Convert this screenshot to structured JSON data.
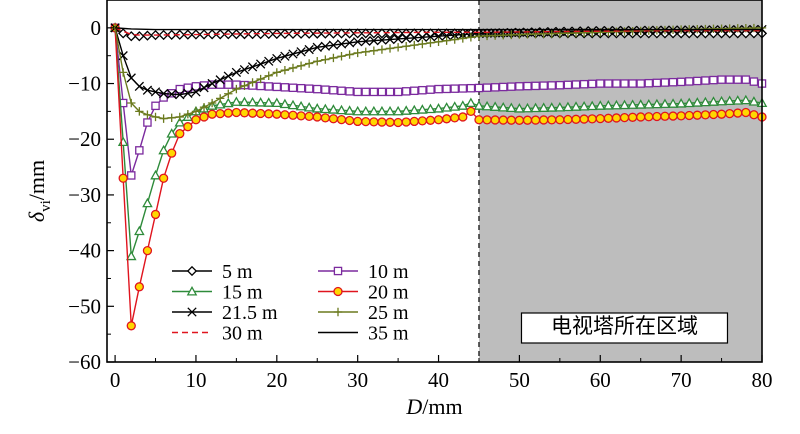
{
  "chart_data": {
    "type": "line",
    "xlabel": {
      "main": "D",
      "unit": "/mm"
    },
    "ylabel": {
      "main": "δ",
      "sub": "vi",
      "unit": "/mm"
    },
    "xlim": [
      -1,
      80
    ],
    "ylim": [
      -60,
      5
    ],
    "xticks": [
      0,
      10,
      20,
      30,
      40,
      50,
      60,
      70,
      80
    ],
    "yticks": [
      0,
      -10,
      -20,
      -30,
      -40,
      -50,
      -60
    ],
    "xtick_labels": [
      "0",
      "10",
      "20",
      "30",
      "40",
      "50",
      "60",
      "70",
      "80"
    ],
    "ytick_labels": [
      "0",
      "−10",
      "−20",
      "−30",
      "−40",
      "−50",
      "−60"
    ],
    "grid": false,
    "legend_placement": "bottom-left",
    "shaded_region": {
      "x_start": 45,
      "x_end": 80,
      "label": "电视塔所在区域",
      "color": "#bdbdbd"
    },
    "series": [
      {
        "name": "5 m",
        "color": "#000000",
        "marker": "diamond",
        "line": "solid",
        "points": [
          [
            0,
            0
          ],
          [
            1,
            -1
          ],
          [
            2,
            -1.5
          ],
          [
            3,
            -1.5
          ],
          [
            5,
            -1.3
          ],
          [
            10,
            -1.2
          ],
          [
            20,
            -1.1
          ],
          [
            30,
            -1
          ],
          [
            40,
            -1
          ],
          [
            45,
            -1
          ],
          [
            50,
            -1
          ],
          [
            60,
            -1
          ],
          [
            70,
            -1
          ],
          [
            80,
            -1
          ]
        ]
      },
      {
        "name": "10 m",
        "color": "#7b2a9e",
        "marker": "square",
        "line": "solid",
        "points": [
          [
            0,
            0
          ],
          [
            1,
            -13.5
          ],
          [
            2,
            -26.5
          ],
          [
            3,
            -22
          ],
          [
            4,
            -17
          ],
          [
            5,
            -14
          ],
          [
            6,
            -12.5
          ],
          [
            8,
            -11
          ],
          [
            10,
            -10.5
          ],
          [
            12,
            -10.2
          ],
          [
            15,
            -10.2
          ],
          [
            20,
            -10.6
          ],
          [
            25,
            -11
          ],
          [
            30,
            -11.5
          ],
          [
            35,
            -11.5
          ],
          [
            40,
            -11
          ],
          [
            45,
            -10.8
          ],
          [
            50,
            -10.5
          ],
          [
            55,
            -10.3
          ],
          [
            60,
            -10
          ],
          [
            65,
            -10
          ],
          [
            70,
            -9.7
          ],
          [
            75,
            -9.3
          ],
          [
            78,
            -9.3
          ],
          [
            80,
            -10
          ]
        ]
      },
      {
        "name": "15 m",
        "color": "#2e8b3a",
        "marker": "triangle",
        "line": "solid",
        "points": [
          [
            0,
            0
          ],
          [
            1,
            -20.5
          ],
          [
            2,
            -41
          ],
          [
            3,
            -36.5
          ],
          [
            4,
            -31.5
          ],
          [
            5,
            -26.5
          ],
          [
            6,
            -22
          ],
          [
            7,
            -19
          ],
          [
            8,
            -17
          ],
          [
            10,
            -15
          ],
          [
            12,
            -14
          ],
          [
            15,
            -13.3
          ],
          [
            20,
            -13.5
          ],
          [
            25,
            -14.5
          ],
          [
            30,
            -15
          ],
          [
            35,
            -15
          ],
          [
            40,
            -14.5
          ],
          [
            43,
            -14
          ],
          [
            44,
            -13.5
          ],
          [
            45,
            -14
          ],
          [
            50,
            -14.5
          ],
          [
            55,
            -14.3
          ],
          [
            60,
            -14
          ],
          [
            65,
            -13.8
          ],
          [
            70,
            -13.6
          ],
          [
            75,
            -13.2
          ],
          [
            78,
            -13
          ],
          [
            80,
            -13.5
          ]
        ]
      },
      {
        "name": "20 m",
        "color": "#e0141e",
        "marker": "circle",
        "line": "solid",
        "marker_fill": "#ffd700",
        "points": [
          [
            0,
            0
          ],
          [
            1,
            -27
          ],
          [
            2,
            -53.5
          ],
          [
            3,
            -46.5
          ],
          [
            4,
            -40
          ],
          [
            5,
            -33.5
          ],
          [
            6,
            -27
          ],
          [
            7,
            -22.5
          ],
          [
            8,
            -19
          ],
          [
            10,
            -16.5
          ],
          [
            12,
            -15.5
          ],
          [
            15,
            -15.2
          ],
          [
            20,
            -15.5
          ],
          [
            25,
            -16
          ],
          [
            30,
            -16.8
          ],
          [
            35,
            -17
          ],
          [
            40,
            -16.5
          ],
          [
            43,
            -16
          ],
          [
            44,
            -15
          ],
          [
            45,
            -16.5
          ],
          [
            50,
            -16.6
          ],
          [
            55,
            -16.5
          ],
          [
            60,
            -16.3
          ],
          [
            65,
            -16
          ],
          [
            70,
            -15.8
          ],
          [
            75,
            -15.5
          ],
          [
            78,
            -15.2
          ],
          [
            80,
            -16
          ]
        ]
      },
      {
        "name": "21.5 m",
        "color": "#000000",
        "marker": "x",
        "line": "solid",
        "points": [
          [
            0,
            0
          ],
          [
            1,
            -5
          ],
          [
            2,
            -9
          ],
          [
            3,
            -10.5
          ],
          [
            4,
            -11.2
          ],
          [
            5,
            -11.5
          ],
          [
            6,
            -11.8
          ],
          [
            8,
            -12
          ],
          [
            10,
            -11.5
          ],
          [
            12,
            -10
          ],
          [
            15,
            -8
          ],
          [
            20,
            -5.5
          ],
          [
            25,
            -3.5
          ],
          [
            30,
            -2.5
          ],
          [
            35,
            -2
          ],
          [
            40,
            -1.5
          ],
          [
            45,
            -1
          ],
          [
            50,
            -0.8
          ],
          [
            60,
            -0.5
          ],
          [
            70,
            -0.4
          ],
          [
            80,
            -0.3
          ]
        ]
      },
      {
        "name": "25 m",
        "color": "#6b7a1e",
        "marker": "plus",
        "line": "solid",
        "points": [
          [
            0,
            0
          ],
          [
            1,
            -8
          ],
          [
            2,
            -13.5
          ],
          [
            3,
            -15
          ],
          [
            4,
            -15.6
          ],
          [
            5,
            -16
          ],
          [
            6,
            -16.3
          ],
          [
            8,
            -16
          ],
          [
            10,
            -15
          ],
          [
            12,
            -13.5
          ],
          [
            15,
            -11
          ],
          [
            20,
            -8
          ],
          [
            25,
            -6
          ],
          [
            30,
            -4.5
          ],
          [
            35,
            -3.5
          ],
          [
            40,
            -2.5
          ],
          [
            45,
            -1.5
          ],
          [
            50,
            -1.2
          ],
          [
            60,
            -0.8
          ],
          [
            70,
            -0.3
          ],
          [
            80,
            0
          ]
        ]
      },
      {
        "name": "30 m",
        "color": "#e0141e",
        "marker": "none",
        "line": "dashed",
        "points": [
          [
            0,
            0
          ],
          [
            1,
            -0.6
          ],
          [
            2,
            -1.2
          ],
          [
            3,
            -1.3
          ],
          [
            5,
            -1.3
          ],
          [
            10,
            -1.2
          ],
          [
            20,
            -1
          ],
          [
            30,
            -0.9
          ],
          [
            40,
            -0.8
          ],
          [
            45,
            -0.8
          ],
          [
            60,
            -0.6
          ],
          [
            70,
            -0.5
          ],
          [
            80,
            -0.5
          ]
        ]
      },
      {
        "name": "35 m",
        "color": "#000000",
        "marker": "none",
        "line": "solid",
        "points": [
          [
            0,
            0
          ],
          [
            2,
            -0.2
          ],
          [
            5,
            -0.3
          ],
          [
            10,
            -0.3
          ],
          [
            20,
            -0.3
          ],
          [
            30,
            -0.3
          ],
          [
            40,
            -0.3
          ],
          [
            50,
            -0.3
          ],
          [
            60,
            -0.3
          ],
          [
            70,
            -0.3
          ],
          [
            80,
            -0.3
          ]
        ]
      }
    ]
  }
}
